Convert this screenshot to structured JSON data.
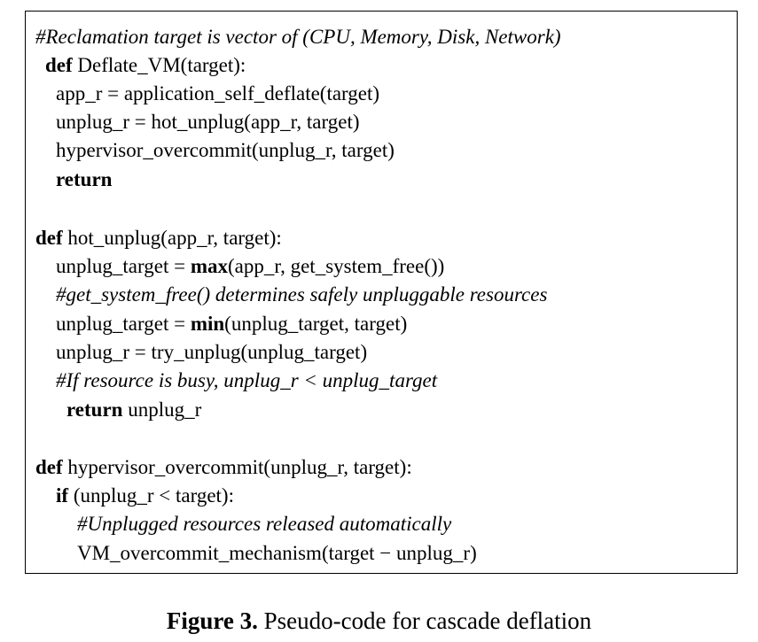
{
  "code": {
    "l1": "#Reclamation target is vector of (CPU, Memory, Disk, Network)",
    "l2_kw": "def",
    "l2_rest": " Deflate_VM(target):",
    "l3": "app_r = application_self_deflate(target)",
    "l4": "unplug_r = hot_unplug(app_r, target)",
    "l5": "hypervisor_overcommit(unplug_r, target)",
    "l6_kw": "return",
    "l7_kw": "def",
    "l7_rest": " hot_unplug(app_r, target):",
    "l8_pre": "unplug_target = ",
    "l8_kw": "max",
    "l8_post": "(app_r, get_system_free())",
    "l9": "#get_system_free() determines safely unpluggable resources",
    "l10_pre": "unplug_target = ",
    "l10_kw": "min",
    "l10_post": "(unplug_target, target)",
    "l11": "unplug_r = try_unplug(unplug_target)",
    "l12": "#If resource is busy, unplug_r < unplug_target",
    "l13_kw": "return",
    "l13_rest": " unplug_r",
    "l14_kw": "def",
    "l14_rest": " hypervisor_overcommit(unplug_r, target):",
    "l15_kw": "if",
    "l15_rest": " (unplug_r < target):",
    "l16": "#Unplugged resources released automatically",
    "l17": "VM_overcommit_mechanism(target − unplug_r)"
  },
  "caption": {
    "label": "Figure 3.",
    "text": " Pseudo-code for cascade deflation"
  }
}
